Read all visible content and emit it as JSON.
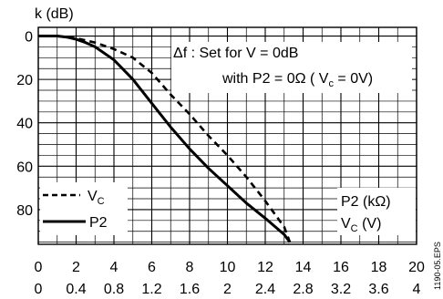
{
  "chart_data": {
    "type": "line",
    "ylabel": "k (dB)",
    "y_ticks": [
      "0",
      "20",
      "40",
      "60",
      "80"
    ],
    "y_range": [
      -4,
      96
    ],
    "y_inverted": true,
    "x_axes": [
      {
        "name": "P2",
        "unit": "kΩ",
        "ticks": [
          "0",
          "2",
          "4",
          "6",
          "8",
          "10",
          "12",
          "14",
          "16",
          "18",
          "20"
        ],
        "range": [
          0,
          20
        ]
      },
      {
        "name": "Vc",
        "unit": "V",
        "ticks": [
          "0",
          "0.4",
          "0.8",
          "1.2",
          "1.6",
          "2",
          "2.4",
          "2.8",
          "3.2",
          "3.6",
          "4"
        ],
        "range": [
          0,
          4
        ]
      }
    ],
    "grid": true,
    "series": [
      {
        "name": "P2",
        "style": "solid",
        "color": "#000000",
        "x": [
          0,
          0.5,
          1,
          1.5,
          2,
          2.5,
          3,
          4,
          5,
          6,
          7,
          8,
          9,
          10,
          11,
          12,
          13,
          13.3
        ],
        "y": [
          0,
          0,
          0,
          0.5,
          1.5,
          3,
          5,
          11,
          20,
          31,
          42,
          52,
          61,
          69,
          77,
          84,
          91.5,
          95
        ]
      },
      {
        "name": "VC",
        "style": "dashed",
        "color": "#000000",
        "x": [
          1,
          2,
          3,
          4,
          5,
          6,
          7,
          8,
          9,
          10,
          11,
          12,
          13,
          13.3
        ],
        "y": [
          0,
          1,
          3,
          6,
          10,
          17,
          27,
          36,
          46,
          55,
          65,
          76,
          88,
          95
        ]
      }
    ],
    "annotations": {
      "line1": "Δf :  Set for V = 0dB",
      "line2": "with P2 = 0Ω ( V",
      "line2_sub": "c",
      "line2_end": " = 0V)"
    },
    "legend": {
      "placement": "bottom-left",
      "items": [
        {
          "label": "V",
          "sub": "C",
          "style": "dashed"
        },
        {
          "label": "P2",
          "sub": "",
          "style": "solid"
        }
      ]
    },
    "axis_key": {
      "p2_label": "P2 (kΩ)",
      "vc_label": "V",
      "vc_sub": "C",
      "vc_unit": " (V)"
    },
    "side_label": "1190-05.EPS"
  }
}
